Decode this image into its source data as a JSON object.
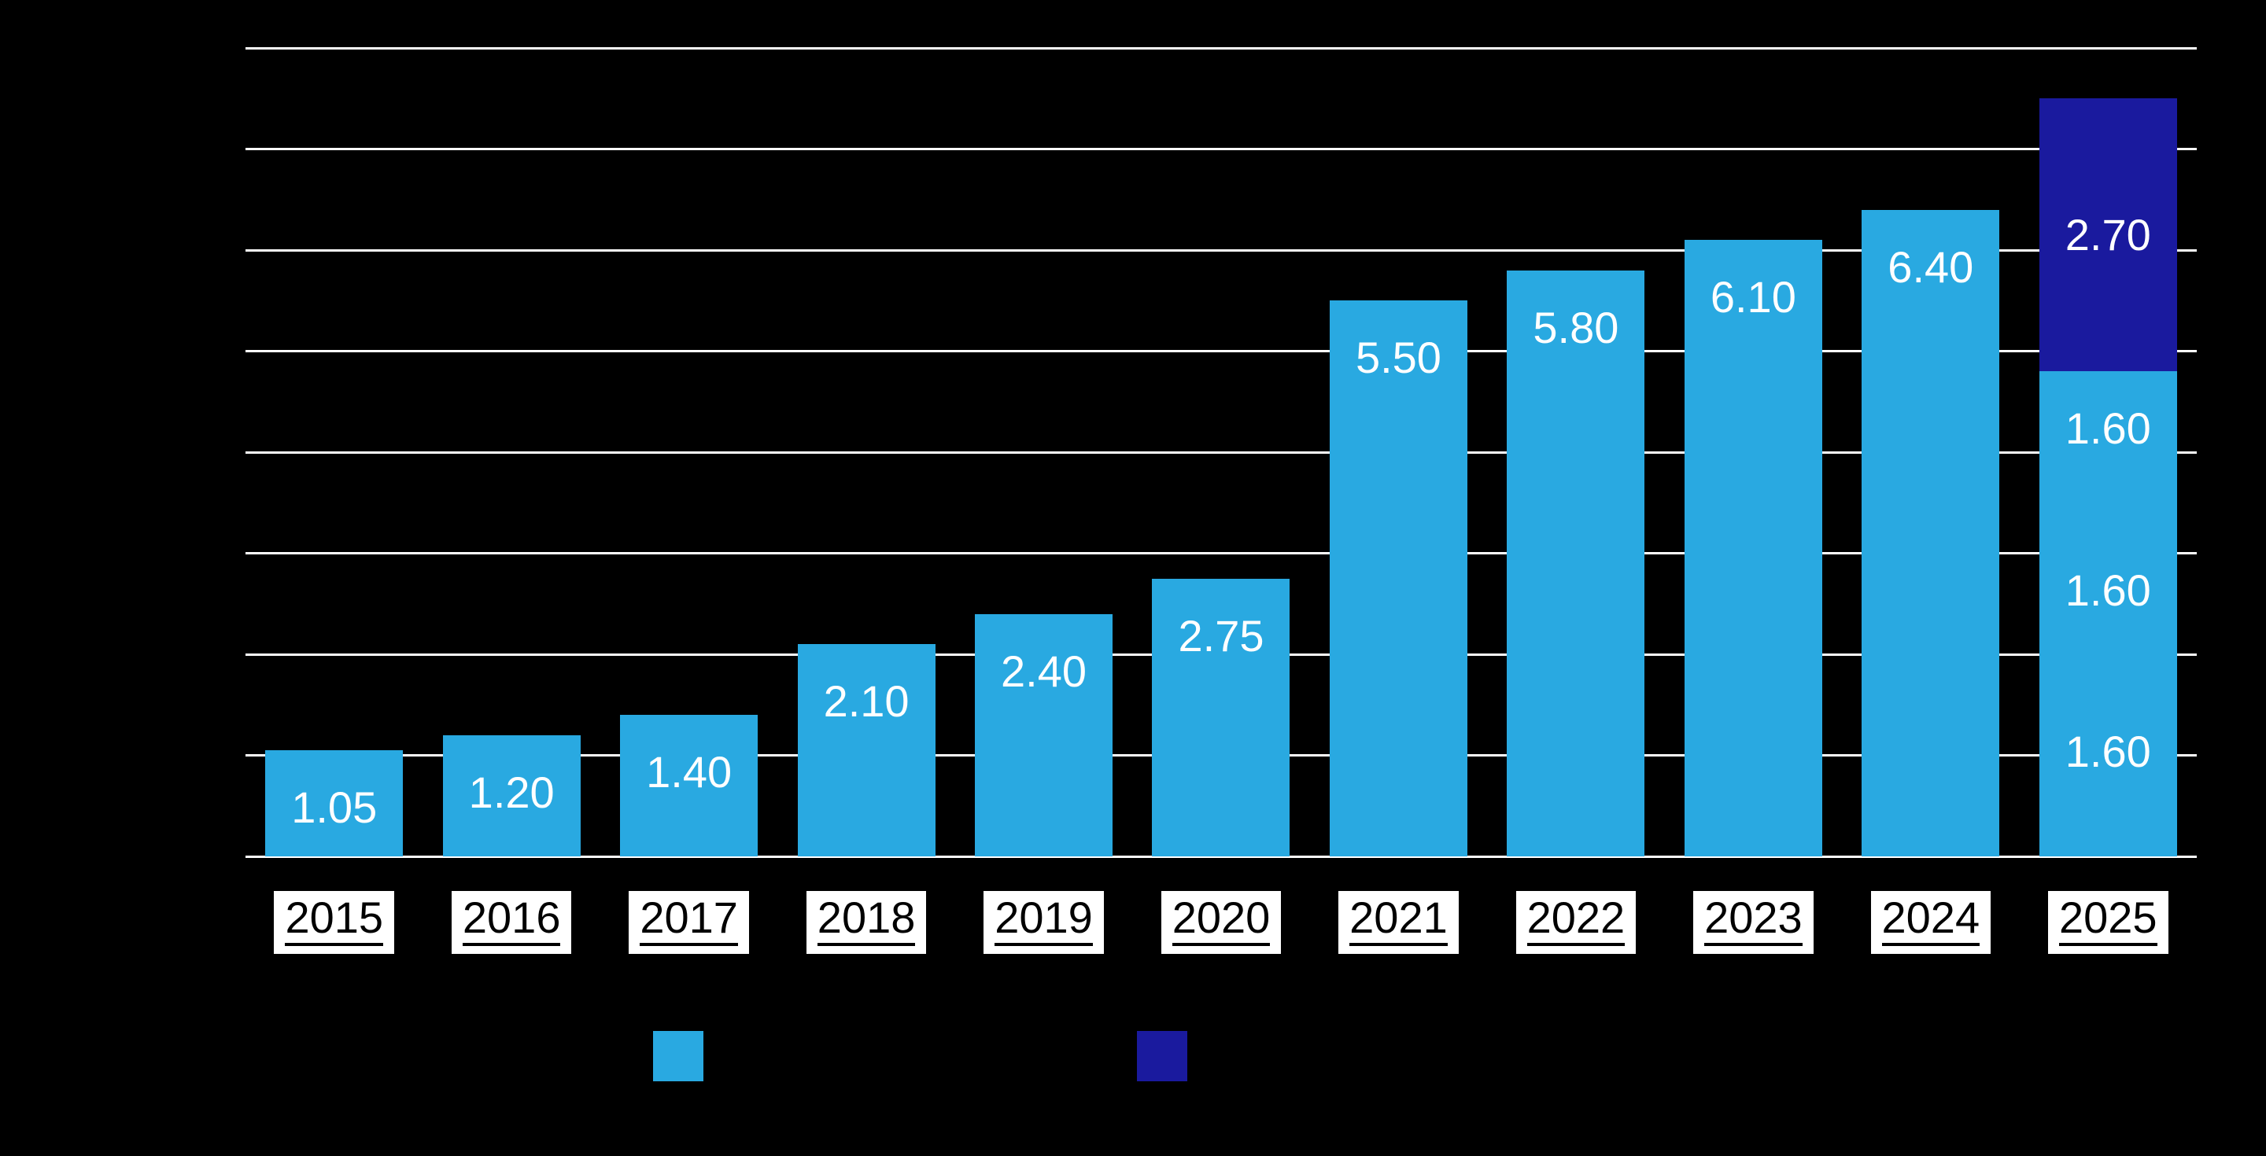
{
  "page": {
    "background": "#000000"
  },
  "colors": {
    "light_blue": "#29A9E1",
    "dark_blue": "#1A1A9E",
    "gridline": "#FFFFFF",
    "bar_label_text": "#FFFFFF",
    "year_label_bg": "#FFFFFF",
    "year_label_text": "#000000"
  },
  "chart_data": {
    "type": "bar",
    "stacked": true,
    "title": "",
    "xlabel": "",
    "ylabel": "",
    "categories": [
      "2015",
      "2016",
      "2017",
      "2018",
      "2019",
      "2020",
      "2021",
      "2022",
      "2023",
      "2024",
      "2025"
    ],
    "ylim": [
      0,
      8
    ],
    "grid_step": 1,
    "grid": true,
    "legend_position": "bottom-left",
    "legend_items": [
      {
        "series": "light",
        "label": ""
      },
      {
        "series": "dark",
        "label": ""
      }
    ],
    "bars": [
      {
        "category": "2015",
        "segments": [
          {
            "series": "light",
            "value": 1.05,
            "label": "1.05",
            "label_position": "top"
          }
        ]
      },
      {
        "category": "2016",
        "segments": [
          {
            "series": "light",
            "value": 1.2,
            "label": "1.20",
            "label_position": "top"
          }
        ]
      },
      {
        "category": "2017",
        "segments": [
          {
            "series": "light",
            "value": 1.4,
            "label": "1.40",
            "label_position": "top"
          }
        ]
      },
      {
        "category": "2018",
        "segments": [
          {
            "series": "light",
            "value": 2.1,
            "label": "2.10",
            "label_position": "top"
          }
        ]
      },
      {
        "category": "2019",
        "segments": [
          {
            "series": "light",
            "value": 2.4,
            "label": "2.40",
            "label_position": "top"
          }
        ]
      },
      {
        "category": "2020",
        "segments": [
          {
            "series": "light",
            "value": 2.75,
            "label": "2.75",
            "label_position": "top"
          }
        ]
      },
      {
        "category": "2021",
        "segments": [
          {
            "series": "light",
            "value": 5.5,
            "label": "5.50",
            "label_position": "top"
          }
        ]
      },
      {
        "category": "2022",
        "segments": [
          {
            "series": "light",
            "value": 5.8,
            "label": "5.80",
            "label_position": "top"
          }
        ]
      },
      {
        "category": "2023",
        "segments": [
          {
            "series": "light",
            "value": 6.1,
            "label": "6.10",
            "label_position": "top"
          }
        ]
      },
      {
        "category": "2024",
        "segments": [
          {
            "series": "light",
            "value": 6.4,
            "label": "6.40",
            "label_position": "top"
          }
        ]
      },
      {
        "category": "2025",
        "segments": [
          {
            "series": "light",
            "value": 1.6,
            "label": "1.60",
            "label_position": "top"
          },
          {
            "series": "light",
            "value": 1.6,
            "label": "1.60",
            "label_position": "top"
          },
          {
            "series": "light",
            "value": 1.6,
            "label": "1.60",
            "label_position": "top"
          },
          {
            "series": "dark",
            "value": 2.7,
            "label": "2.70",
            "label_position": "center"
          }
        ]
      }
    ]
  }
}
